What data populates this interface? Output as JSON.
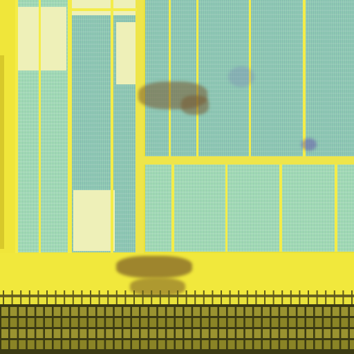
{
  "scene": {
    "description_colors": {
      "bus_yellow": "#e9e23a",
      "metal_line": "#f4ec48",
      "cell_green": "#9fd8b3",
      "cell_pale": "#eef0b8",
      "pad_dark": "#6f6a1f",
      "stain_brown": "#8a6a2a",
      "defect_purple": "#6f5aa8"
    }
  }
}
